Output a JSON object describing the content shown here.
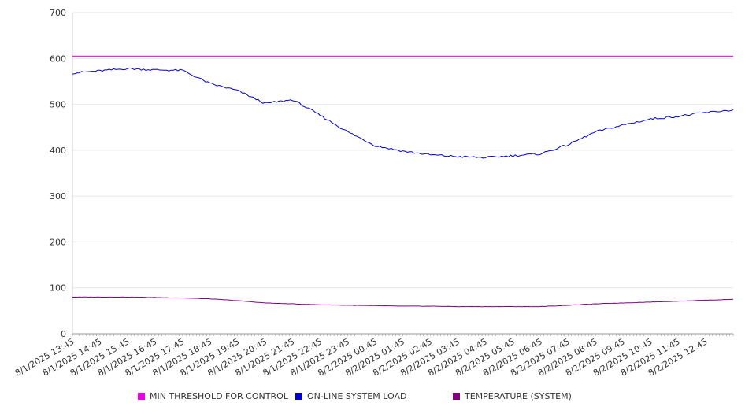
{
  "chart_data": {
    "type": "line",
    "title": "",
    "xlabel": "",
    "ylabel": "",
    "ylim": [
      0,
      700
    ],
    "y_ticks": [
      0,
      100,
      200,
      300,
      400,
      500,
      600,
      700
    ],
    "x_tick_labels": [
      "8/1/2025 13:45",
      "8/1/2025 14:45",
      "8/1/2025 15:45",
      "8/1/2025 16:45",
      "8/1/2025 17:45",
      "8/1/2025 18:45",
      "8/1/2025 19:45",
      "8/1/2025 20:45",
      "8/1/2025 21:45",
      "8/1/2025 22:45",
      "8/1/2025 23:45",
      "8/2/2025 00:45",
      "8/2/2025 01:45",
      "8/2/2025 02:45",
      "8/2/2025 03:45",
      "8/2/2025 04:45",
      "8/2/2025 05:45",
      "8/2/2025 06:45",
      "8/2/2025 07:45",
      "8/2/2025 08:45",
      "8/2/2025 09:45",
      "8/2/2025 10:45",
      "8/2/2025 11:45",
      "8/2/2025 12:45"
    ],
    "grid": "horizontal",
    "legend_position": "bottom",
    "x": [
      "8/1/2025 13:45",
      "8/1/2025 14:45",
      "8/1/2025 15:45",
      "8/1/2025 16:45",
      "8/1/2025 17:45",
      "8/1/2025 18:45",
      "8/1/2025 19:45",
      "8/1/2025 20:45",
      "8/1/2025 21:45",
      "8/1/2025 22:45",
      "8/1/2025 23:45",
      "8/2/2025 00:45",
      "8/2/2025 01:45",
      "8/2/2025 02:45",
      "8/2/2025 03:45",
      "8/2/2025 04:45",
      "8/2/2025 05:45",
      "8/2/2025 06:45",
      "8/2/2025 07:45",
      "8/2/2025 08:45",
      "8/2/2025 09:45",
      "8/2/2025 10:45",
      "8/2/2025 11:45",
      "8/2/2025 12:45",
      "8/2/2025 13:45"
    ],
    "series": [
      {
        "name": "MIN THRESHOLD FOR CONTROL",
        "color": "#e800e8",
        "values": [
          605,
          605,
          605,
          605,
          605,
          605,
          605,
          605,
          605,
          605,
          605,
          605,
          605,
          605,
          605,
          605,
          605,
          605,
          605,
          605,
          605,
          605,
          605,
          605,
          605
        ]
      },
      {
        "name": "ON-LINE SYSTEM LOAD",
        "color": "#0000cc",
        "values": [
          568,
          573,
          578,
          575,
          574,
          545,
          530,
          502,
          510,
          476,
          440,
          410,
          398,
          390,
          386,
          384,
          388,
          392,
          412,
          440,
          455,
          468,
          474,
          482,
          488
        ]
      },
      {
        "name": "TEMPERATURE (SYSTEM)",
        "color": "#800080",
        "values": [
          80,
          80,
          80,
          79,
          78,
          76,
          72,
          67,
          65,
          63,
          62,
          61,
          60,
          60,
          59,
          59,
          59,
          59,
          62,
          65,
          67,
          69,
          71,
          73,
          75
        ]
      }
    ]
  }
}
